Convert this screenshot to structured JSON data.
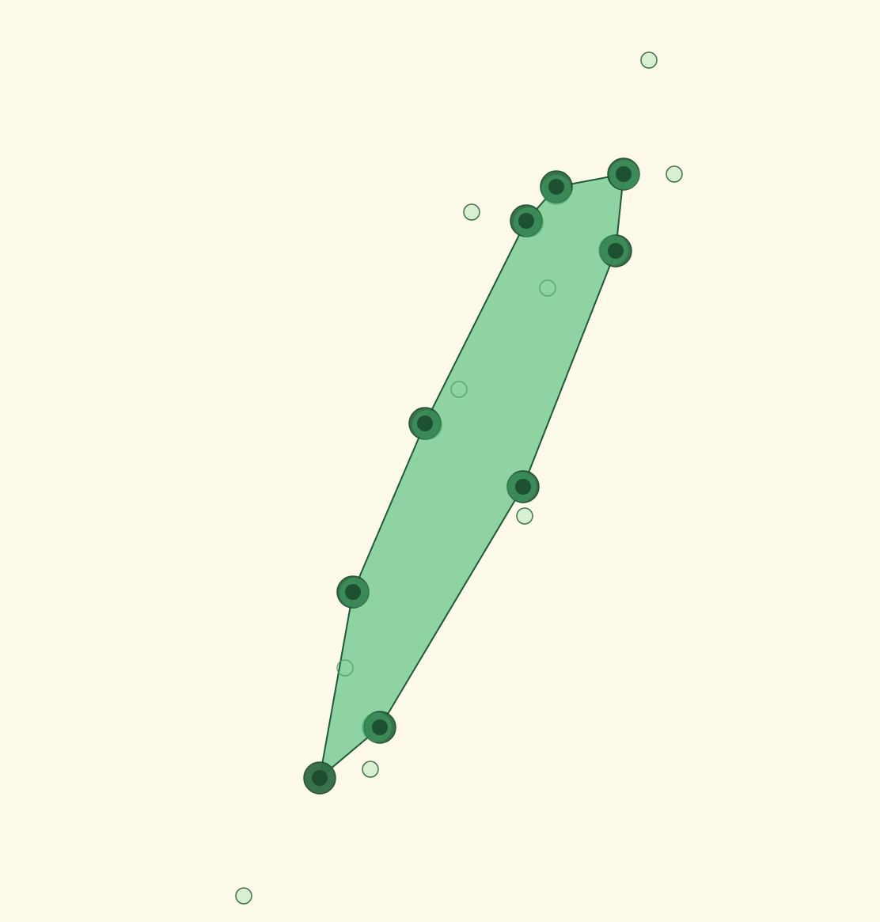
{
  "colors": {
    "background": "#fefae9",
    "hull_fill": "#8fd3a2",
    "hull_stroke": "#1f5a37",
    "vertex_outer": "#2f6a45",
    "vertex_inner": "#1b4a2e",
    "vertex_halo": "#3f9f62",
    "free_point_fill": "#d9efd1",
    "free_point_stroke": "#3e7450",
    "inner_point_stroke": "#4f9a6a"
  },
  "hull_order": [
    "v1",
    "v2",
    "v3",
    "v4",
    "v5",
    "v6",
    "v7",
    "v8",
    "v9",
    "v10"
  ],
  "hull_vertices": [
    {
      "id": "v1"
    },
    {
      "id": "v2"
    },
    {
      "id": "v3"
    },
    {
      "id": "v4"
    },
    {
      "id": "v5"
    },
    {
      "id": "v6"
    },
    {
      "id": "v7"
    },
    {
      "id": "v8"
    },
    {
      "id": "v9"
    },
    {
      "id": "v10"
    }
  ],
  "interior_points": [
    {
      "id": "i1"
    },
    {
      "id": "i2"
    },
    {
      "id": "i3"
    }
  ],
  "exterior_points": [
    {
      "id": "e1"
    },
    {
      "id": "e2"
    },
    {
      "id": "e3"
    },
    {
      "id": "e4"
    },
    {
      "id": "e5"
    },
    {
      "id": "e6"
    }
  ]
}
